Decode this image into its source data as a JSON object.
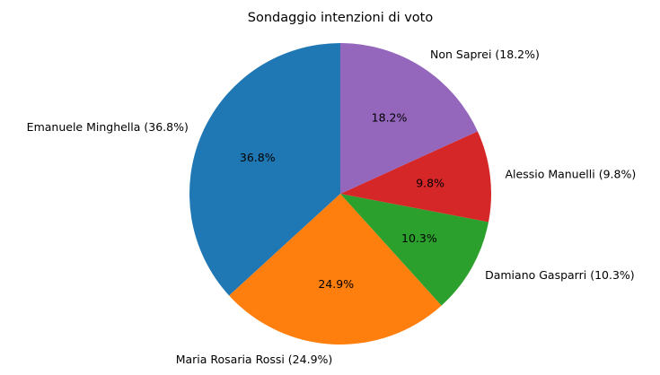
{
  "chart_data": {
    "type": "pie",
    "title": "Sondaggio intenzioni di voto",
    "slices": [
      {
        "label": "Emanuele Minghella (36.8%)",
        "value": 36.8,
        "pct_label": "36.8%",
        "color": "#1f77b4"
      },
      {
        "label": "Maria Rosaria Rossi (24.9%)",
        "value": 24.9,
        "pct_label": "24.9%",
        "color": "#ff7f0e"
      },
      {
        "label": "Damiano Gasparri (10.3%)",
        "value": 10.3,
        "pct_label": "10.3%",
        "color": "#2ca02c"
      },
      {
        "label": "Alessio Manuelli (9.8%)",
        "value": 9.8,
        "pct_label": "9.8%",
        "color": "#d62728"
      },
      {
        "label": "Non Saprei (18.2%)",
        "value": 18.2,
        "pct_label": "18.2%",
        "color": "#9467bd"
      }
    ],
    "start_angle_deg": 90,
    "direction": "counterclockwise",
    "legend": "none"
  }
}
